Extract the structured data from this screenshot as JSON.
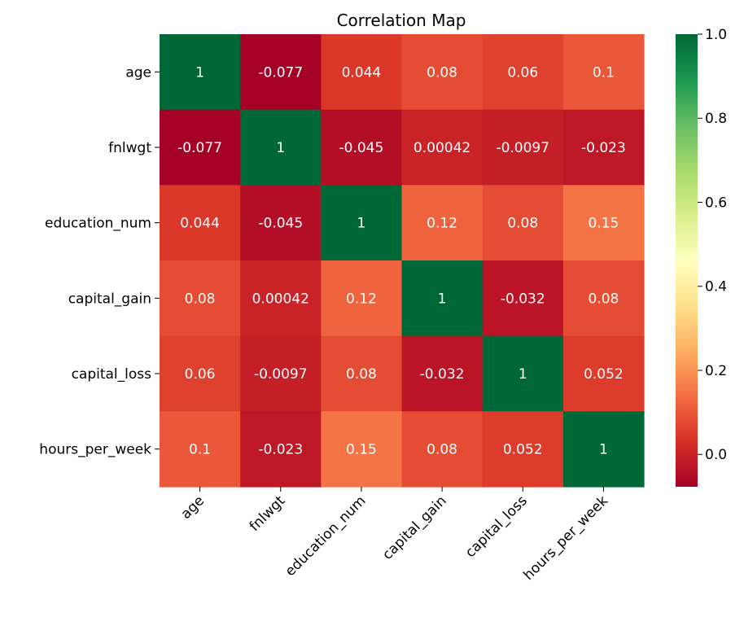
{
  "chart_data": {
    "type": "heatmap",
    "title": "Correlation Map",
    "xlabel": "",
    "ylabel": "",
    "x_categories": [
      "age",
      "fnlwgt",
      "education_num",
      "capital_gain",
      "capital_loss",
      "hours_per_week"
    ],
    "y_categories": [
      "age",
      "fnlwgt",
      "education_num",
      "capital_gain",
      "capital_loss",
      "hours_per_week"
    ],
    "values": [
      [
        1,
        -0.077,
        0.044,
        0.08,
        0.06,
        0.1
      ],
      [
        -0.077,
        1,
        -0.045,
        0.00042,
        -0.0097,
        -0.023
      ],
      [
        0.044,
        -0.045,
        1,
        0.12,
        0.08,
        0.15
      ],
      [
        0.08,
        0.00042,
        0.12,
        1,
        -0.032,
        0.08
      ],
      [
        0.06,
        -0.0097,
        0.08,
        -0.032,
        1,
        0.052
      ],
      [
        0.1,
        -0.023,
        0.15,
        0.08,
        0.052,
        1
      ]
    ],
    "value_labels": [
      [
        "1",
        "-0.077",
        "0.044",
        "0.08",
        "0.06",
        "0.1"
      ],
      [
        "-0.077",
        "1",
        "-0.045",
        "0.00042",
        "-0.0097",
        "-0.023"
      ],
      [
        "0.044",
        "-0.045",
        "1",
        "0.12",
        "0.08",
        "0.15"
      ],
      [
        "0.08",
        "0.00042",
        "0.12",
        "1",
        "-0.032",
        "0.08"
      ],
      [
        "0.06",
        "-0.0097",
        "0.08",
        "-0.032",
        "1",
        "0.052"
      ],
      [
        "0.1",
        "-0.023",
        "0.15",
        "0.08",
        "0.052",
        "1"
      ]
    ],
    "colormap": "RdYlGn",
    "color_range": [
      -0.077,
      1
    ],
    "colorbar": {
      "ticks": [
        0.0,
        0.2,
        0.4,
        0.6,
        0.8,
        1.0
      ],
      "tick_labels": [
        "0.0",
        "0.2",
        "0.4",
        "0.6",
        "0.8",
        "1.0"
      ],
      "placement": "right"
    },
    "x_tick_rotation_deg": 45,
    "annotation_text_color": "#ffffff"
  }
}
